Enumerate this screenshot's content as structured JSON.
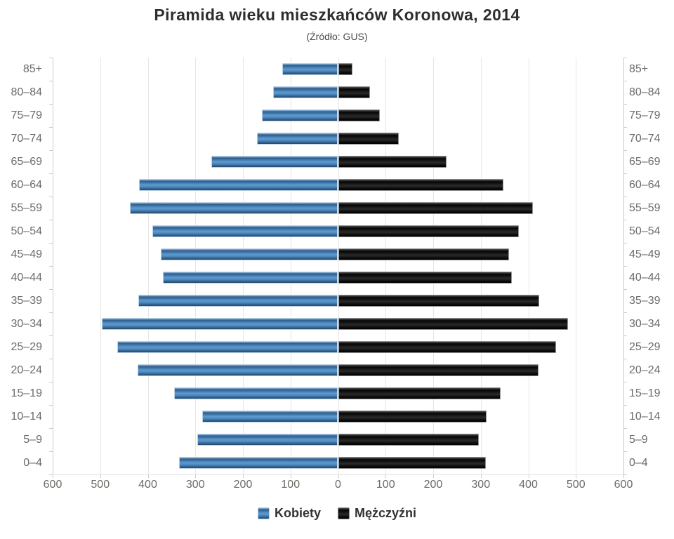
{
  "header": {
    "title": "Piramida wieku mieszkańców Koronowa, 2014",
    "subtitle": "(Źródło: GUS)"
  },
  "legend": {
    "items": [
      {
        "label": "Kobiety",
        "color": "#4a82b4"
      },
      {
        "label": "Mężczyźni",
        "color": "#141414"
      }
    ],
    "position": "bottom"
  },
  "colors": {
    "kobiety_bar": "#4a82b4",
    "mezczyzni_bar": "#141414",
    "axis_label": "#6e6a66",
    "gridline": "#e6e6e6",
    "axis_line": "#c7ccd1",
    "title_text": "#2e2e2e"
  },
  "chart_data": {
    "type": "bar",
    "variant": "population-pyramid-horizontal",
    "title": "Piramida wieku mieszkańców Koronowa, 2014",
    "subtitle": "(Źródło: GUS)",
    "categories_top_to_bottom": [
      "85+",
      "80–84",
      "75–79",
      "70–74",
      "65–69",
      "60–64",
      "55–59",
      "50–54",
      "45–49",
      "40–44",
      "35–39",
      "30–34",
      "25–29",
      "20–24",
      "15–19",
      "10–14",
      "5–9",
      "0–4"
    ],
    "series": [
      {
        "name": "Kobiety",
        "side": "left",
        "color": "#4a82b4",
        "values": [
          117,
          136,
          160,
          170,
          267,
          418,
          437,
          390,
          372,
          368,
          420,
          497,
          464,
          421,
          344,
          286,
          296,
          335
        ]
      },
      {
        "name": "Mężczyźni",
        "side": "right",
        "color": "#141414",
        "values": [
          30,
          67,
          88,
          128,
          228,
          347,
          410,
          380,
          360,
          365,
          423,
          483,
          458,
          421,
          342,
          312,
          296,
          310
        ]
      }
    ],
    "x_axis": {
      "tick_labels": [
        "600",
        "500",
        "400",
        "300",
        "200",
        "100",
        "0",
        "100",
        "200",
        "300",
        "400",
        "500",
        "600"
      ],
      "max_each_side": 600,
      "gridlines": true
    },
    "y_axis": {
      "labels_on_both_sides": true
    },
    "legend_position": "bottom"
  }
}
